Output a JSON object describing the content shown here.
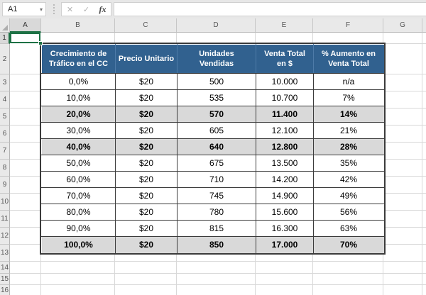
{
  "toolbar": {
    "name_box_value": "A1",
    "dropdown_icon": "▾",
    "cancel_icon": "✕",
    "enter_icon": "✓",
    "insert_function_label": "fx",
    "formula_bar_value": ""
  },
  "sheet": {
    "column_headers": [
      "A",
      "B",
      "C",
      "D",
      "E",
      "F",
      "G",
      ""
    ],
    "row_headers": [
      "1",
      "2",
      "3",
      "4",
      "5",
      "6",
      "7",
      "8",
      "9",
      "10",
      "11",
      "12",
      "13",
      "14",
      "15",
      "16"
    ],
    "selected_cell": "A1"
  },
  "table": {
    "headers": [
      "Crecimiento de\nTráfico en el CC",
      "Precio Unitario",
      "Unidades\nVendidas",
      "Venta Total\nen $",
      "% Aumento en\nVenta Total"
    ],
    "rows": [
      [
        "0,0%",
        "$20",
        "500",
        "10.000",
        "n/a"
      ],
      [
        "10,0%",
        "$20",
        "535",
        "10.700",
        "7%"
      ],
      [
        "20,0%",
        "$20",
        "570",
        "11.400",
        "14%"
      ],
      [
        "30,0%",
        "$20",
        "605",
        "12.100",
        "21%"
      ],
      [
        "40,0%",
        "$20",
        "640",
        "12.800",
        "28%"
      ],
      [
        "50,0%",
        "$20",
        "675",
        "13.500",
        "35%"
      ],
      [
        "60,0%",
        "$20",
        "710",
        "14.200",
        "42%"
      ],
      [
        "70,0%",
        "$20",
        "745",
        "14.900",
        "49%"
      ],
      [
        "80,0%",
        "$20",
        "780",
        "15.600",
        "56%"
      ],
      [
        "90,0%",
        "$20",
        "815",
        "16.300",
        "63%"
      ],
      [
        "100,0%",
        "$20",
        "850",
        "17.000",
        "70%"
      ]
    ],
    "highlighted_rows": [
      2,
      4,
      10
    ]
  },
  "colors": {
    "table_header_bg": "#31618F",
    "table_header_divider": "#4E7BA8",
    "table_border": "#3B3B3B",
    "highlight_row_bg": "#D9D9D9",
    "selection_green": "#1E7145"
  }
}
